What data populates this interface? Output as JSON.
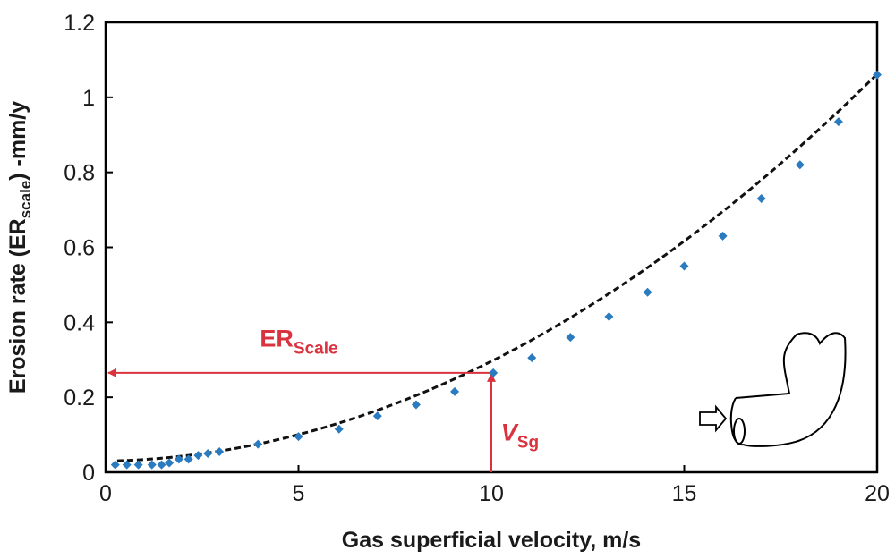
{
  "chart_data": {
    "type": "scatter",
    "title": "",
    "xlabel": "Gas superficial velocity, m/s",
    "ylabel": {
      "main": "Erosion rate (ER",
      "sub": "scale",
      "suffix": ") -mm/y"
    },
    "xlim": [
      0,
      20
    ],
    "ylim": [
      0,
      1.2
    ],
    "x_ticks": [
      0,
      5,
      10,
      15,
      20
    ],
    "x_tick_labels": [
      "0",
      "5",
      "10",
      "15",
      "20"
    ],
    "y_ticks": [
      0,
      0.2,
      0.4,
      0.6,
      0.8,
      1.0,
      1.2
    ],
    "y_tick_labels": [
      "0",
      "0.2",
      "0.4",
      "0.6",
      "0.8",
      "1",
      "1.2"
    ],
    "grid": false,
    "series": [
      {
        "marker": "diamond",
        "color": "#2b7bc0",
        "x": [
          0.25,
          0.55,
          0.85,
          1.2,
          1.45,
          1.65,
          1.9,
          2.15,
          2.4,
          2.65,
          2.95,
          3.95,
          5.0,
          6.05,
          7.05,
          8.05,
          9.05,
          10.05,
          11.05,
          12.05,
          13.05,
          14.05,
          15.0,
          16.0,
          17.0,
          18.0,
          19.0,
          20.0
        ],
        "y": [
          0.02,
          0.02,
          0.02,
          0.02,
          0.02,
          0.025,
          0.035,
          0.035,
          0.045,
          0.05,
          0.055,
          0.075,
          0.095,
          0.115,
          0.15,
          0.18,
          0.215,
          0.265,
          0.305,
          0.36,
          0.415,
          0.48,
          0.55,
          0.63,
          0.73,
          0.82,
          0.935,
          1.06
        ]
      }
    ],
    "trendline": {
      "style": "dashed",
      "color": "#111111",
      "fit": "quadratic",
      "coefficients": [
        0.0025,
        0.0016,
        0.03
      ],
      "x_range": [
        0.3,
        20
      ]
    },
    "annotations": [
      {
        "type": "marker-lines",
        "color": "#d9333f",
        "x": 10,
        "y": 0.265
      },
      {
        "type": "label",
        "color": "#d9333f",
        "main": "ER",
        "sub": "Scale",
        "x": 4.0,
        "y": 0.335
      },
      {
        "type": "label",
        "color": "#d9333f",
        "main": "V",
        "sub": "Sg",
        "x": 10.25,
        "y": 0.085,
        "italic_main": true
      }
    ],
    "inset_icon": "pipe-elbow-flow-icon"
  }
}
